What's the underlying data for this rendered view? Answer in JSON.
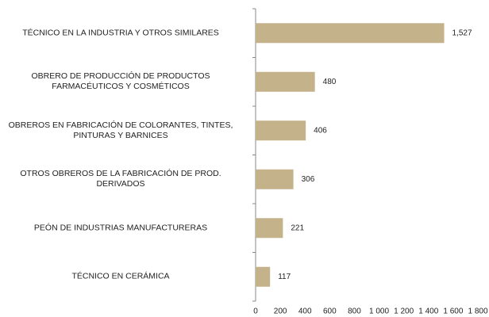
{
  "chart_data": {
    "type": "bar",
    "orientation": "horizontal",
    "categories": [
      "TÉCNICO EN LA INDUSTRIA Y OTROS SIMILARES",
      "OBRERO DE PRODUCCIÓN DE PRODUCTOS\nFARMACÉUTICOS Y COSMÉTICOS",
      "OBREROS EN FABRICACIÓN DE COLORANTES, TINTES,\nPINTURAS Y BARNICES",
      "OTROS OBREROS DE LA FABRICACIÓN DE PROD.\nDERIVADOS",
      "PEÓN DE INDUSTRIAS MANUFACTURERAS",
      "TÉCNICO EN CERÁMICA"
    ],
    "values": [
      1527,
      480,
      406,
      306,
      221,
      117
    ],
    "value_labels": [
      "1,527",
      "480",
      "406",
      "306",
      "221",
      "117"
    ],
    "color": "#c4b28a",
    "xlim": [
      0,
      1800
    ],
    "xticks": [
      0,
      200,
      400,
      600,
      800,
      {
        "value": 1000,
        "label": "1 000"
      },
      {
        "value": 1200,
        "label": "1 200"
      },
      {
        "value": 1400,
        "label": "1 400"
      },
      {
        "value": 1600,
        "label": "1 600"
      },
      {
        "value": 1800,
        "label": "1 800"
      }
    ],
    "grid": false
  }
}
